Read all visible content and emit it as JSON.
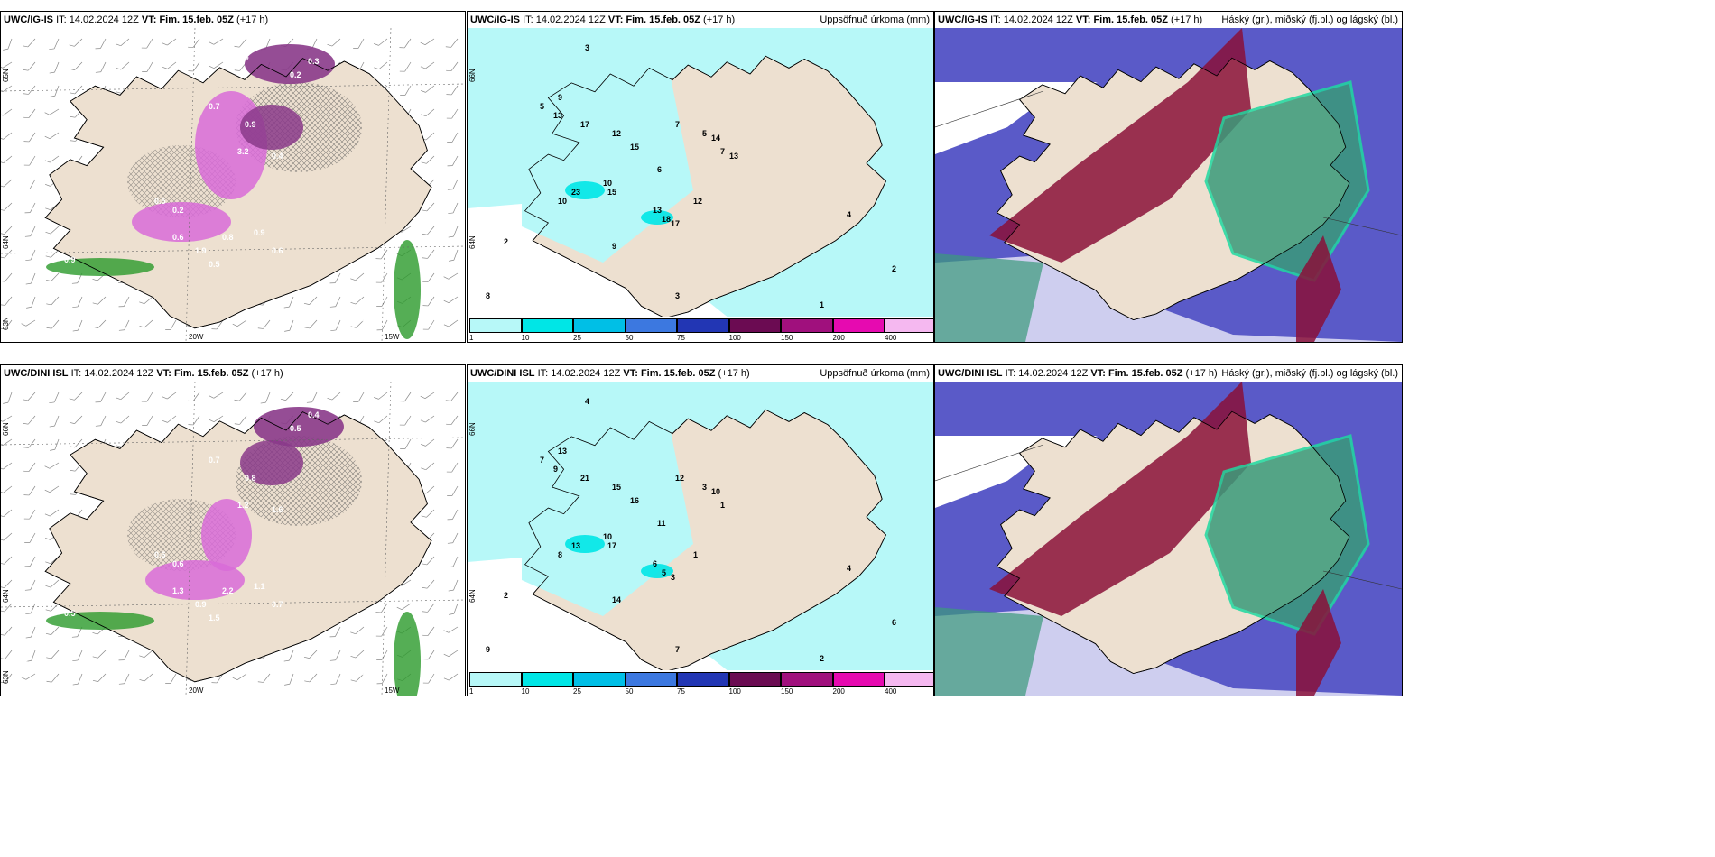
{
  "panels": [
    {
      "model": "UWC/IG-IS",
      "it_label": "IT:",
      "it_value": "14.02.2024 12Z",
      "vt_label": "VT:",
      "vt_value": "Fim. 15.feb. 05Z",
      "lead": "(+17 h)",
      "right_title": "",
      "lon_labels": [
        "20W",
        "15W"
      ],
      "lat_labels": [
        "65N",
        "64N",
        "63N"
      ],
      "values": [
        "0.4",
        "0.3",
        "0.2",
        "0.7",
        "0.9",
        "3.2",
        "0.4",
        "0.5",
        "0.6",
        "1.9",
        "0.5",
        "0.8",
        "0.9",
        "0.6",
        "0.2",
        "0.9",
        "0.6",
        "1.2",
        "1.7",
        "1.2",
        "0.5"
      ]
    },
    {
      "model": "UWC/IG-IS",
      "it_label": "IT:",
      "it_value": "14.02.2024 12Z",
      "vt_label": "VT:",
      "vt_value": "Fim. 15.feb. 05Z",
      "lead": "(+17 h)",
      "right_title": "Uppsöfnuð úrkoma (mm)",
      "lat_labels": [
        "66N",
        "64N"
      ],
      "values": [
        "3",
        "5",
        "2",
        "9",
        "13",
        "17",
        "12",
        "15",
        "10",
        "7",
        "6",
        "23",
        "15",
        "13",
        "18",
        "17",
        "12",
        "10",
        "9",
        "8",
        "4",
        "2",
        "1",
        "3",
        "5",
        "7",
        "14",
        "13"
      ]
    },
    {
      "model": "UWC/IG-IS",
      "it_label": "IT:",
      "it_value": "14.02.2024 12Z",
      "vt_label": "VT:",
      "vt_value": "Fim. 15.feb. 05Z",
      "lead": "(+17 h)",
      "right_title": "Háský (gr.), miðský (fj.bl.) og lágský (bl.)"
    },
    {
      "model": "UWC/DINI ISL",
      "it_label": "IT:",
      "it_value": "14.02.2024 12Z",
      "vt_label": "VT:",
      "vt_value": "Fim. 15.feb. 05Z",
      "lead": "(+17 h)",
      "right_title": "",
      "lon_labels": [
        "20W",
        "15W"
      ],
      "lat_labels": [
        "66N",
        "64N",
        "63N"
      ],
      "values": [
        "0.3",
        "0.4",
        "0.5",
        "0.7",
        "0.8",
        "1.2",
        "1.6",
        "0.6",
        "1.3",
        "0.9",
        "1.5",
        "2.2",
        "1.1",
        "0.7",
        "0.6",
        "0.5",
        "1.9",
        "0.5",
        "1.6",
        "1.2",
        "0.6",
        "1.2",
        "0.4"
      ]
    },
    {
      "model": "UWC/DINI ISL",
      "it_label": "IT:",
      "it_value": "14.02.2024 12Z",
      "vt_label": "VT:",
      "vt_value": "Fim. 15.feb. 05Z",
      "lead": "(+17 h)",
      "right_title": "Uppsöfnuð úrkoma (mm)",
      "lat_labels": [
        "66N",
        "64N"
      ],
      "values": [
        "4",
        "7",
        "2",
        "13",
        "9",
        "21",
        "15",
        "16",
        "10",
        "12",
        "11",
        "13",
        "17",
        "6",
        "5",
        "3",
        "1",
        "8",
        "14",
        "9",
        "4",
        "6",
        "2",
        "7",
        "3",
        "1",
        "10"
      ]
    },
    {
      "model": "UWC/DINI ISL",
      "it_label": "IT:",
      "it_value": "14.02.2024 12Z",
      "vt_label": "VT:",
      "vt_value": "Fim. 15.feb. 05Z",
      "lead": "(+17 h)",
      "right_title": "Háský (gr.), miðský (fj.bl.) og lágský (bl.)"
    }
  ],
  "colorbar": {
    "ticks": [
      "1",
      "10",
      "25",
      "50",
      "75",
      "100",
      "150",
      "200",
      "400"
    ],
    "colors": [
      "#b7f8f8",
      "#00e6e6",
      "#00bfe6",
      "#3c78e0",
      "#2236b4",
      "#6b0b52",
      "#a0107d",
      "#e60ab0",
      "#f5b8f0"
    ]
  },
  "colors": {
    "land": "#ede0d0",
    "ocean": "#ffffff",
    "precip_light": "#b7f8f8",
    "snow_purple": "#8a3a8a",
    "snow_pink": "#d86bd8",
    "rain_green": "#2a9a2a",
    "high_cloud": "#8a1038",
    "mid_cloud": "#5a5ac8",
    "low_cloud": "#3a9a7a"
  }
}
